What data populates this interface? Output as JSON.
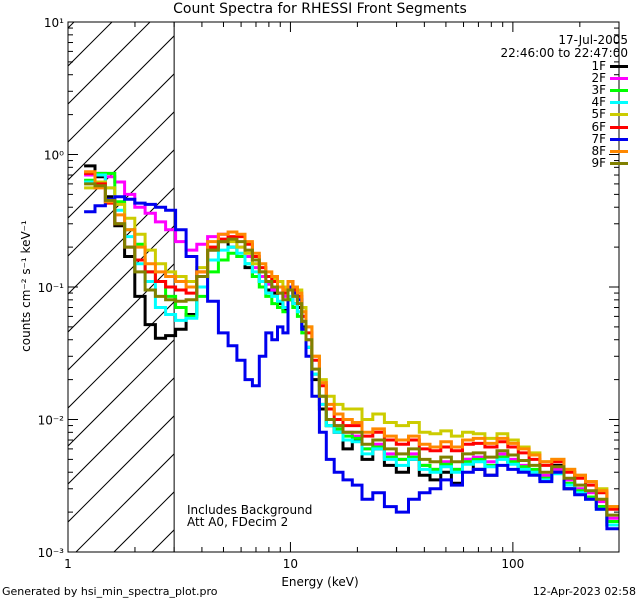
{
  "title": "Count Spectra for RHESSI Front Segments",
  "footer_left": "Generated by hsi_min_spectra_plot.pro",
  "footer_right": "12-Apr-2023 02:58",
  "legend_date": "17-Jul-2005",
  "legend_time": "22:46:00 to 22:47:00",
  "note_lines": [
    "Includes Background",
    "Att A0, FDecim 2"
  ],
  "chart_data": {
    "type": "line",
    "xscale": "log",
    "yscale": "log",
    "xlabel": "Energy (keV)",
    "ylabel": "counts cm⁻² s⁻¹ keV⁻¹",
    "xlim": [
      1,
      300
    ],
    "ylim": [
      0.001,
      10
    ],
    "x_ticks": [
      {
        "v": 1,
        "label": "1"
      },
      {
        "v": 10,
        "label": "10"
      },
      {
        "v": 100,
        "label": "100"
      }
    ],
    "y_ticks": [
      {
        "v": 0.001,
        "label": "10⁻³"
      },
      {
        "v": 0.01,
        "label": "10⁻²"
      },
      {
        "v": 0.1,
        "label": "10⁻¹"
      },
      {
        "v": 1,
        "label": "10⁰"
      },
      {
        "v": 10,
        "label": "10¹"
      }
    ],
    "shaded_region_keV": [
      1,
      3
    ],
    "energies": [
      1.25,
      1.4,
      1.55,
      1.7,
      1.9,
      2.1,
      2.35,
      2.6,
      2.9,
      3.2,
      3.6,
      4.0,
      4.5,
      5.0,
      5.5,
      6.0,
      6.5,
      7.0,
      7.5,
      8.0,
      8.5,
      9.0,
      9.5,
      10.0,
      10.5,
      11.0,
      11.5,
      12.0,
      13.0,
      14.0,
      15.0,
      16.5,
      18.0,
      20.0,
      22.0,
      25.0,
      28.0,
      32.0,
      36.0,
      40.0,
      45.0,
      50.0,
      56.0,
      63.0,
      70.0,
      80.0,
      90.0,
      100.0,
      112.0,
      125.0,
      140.0,
      160.0,
      180.0,
      200.0,
      225.0,
      250.0,
      280.0,
      300.0
    ],
    "series": [
      {
        "name": "1F",
        "color": "#000000",
        "values": [
          0.82,
          0.68,
          0.48,
          0.29,
          0.17,
          0.085,
          0.052,
          0.041,
          0.043,
          0.048,
          0.062,
          0.12,
          0.19,
          0.22,
          0.2,
          0.17,
          0.14,
          0.12,
          0.11,
          0.095,
          0.09,
          0.075,
          0.068,
          0.08,
          0.075,
          0.07,
          0.05,
          0.035,
          0.02,
          0.012,
          0.009,
          0.008,
          0.006,
          0.007,
          0.005,
          0.006,
          0.0045,
          0.004,
          0.005,
          0.0038,
          0.0035,
          0.004,
          0.0033,
          0.005,
          0.0042,
          0.0038,
          0.0052,
          0.0048,
          0.0042,
          0.004,
          0.0036,
          0.0045,
          0.003,
          0.0028,
          0.0026,
          0.0022,
          0.0016,
          0.0016
        ]
      },
      {
        "name": "2F",
        "color": "#ff00ff",
        "values": [
          0.7,
          0.72,
          0.68,
          0.62,
          0.5,
          0.4,
          0.36,
          0.31,
          0.27,
          0.22,
          0.19,
          0.21,
          0.24,
          0.25,
          0.23,
          0.2,
          0.17,
          0.14,
          0.12,
          0.105,
          0.095,
          0.09,
          0.085,
          0.1,
          0.09,
          0.08,
          0.055,
          0.04,
          0.022,
          0.013,
          0.01,
          0.009,
          0.008,
          0.0075,
          0.006,
          0.0065,
          0.0055,
          0.005,
          0.0055,
          0.0045,
          0.0042,
          0.0048,
          0.0042,
          0.005,
          0.0052,
          0.0048,
          0.0055,
          0.005,
          0.0045,
          0.004,
          0.0038,
          0.0042,
          0.0035,
          0.003,
          0.0028,
          0.0024,
          0.0018,
          0.0018
        ]
      },
      {
        "name": "3F",
        "color": "#00ff00",
        "values": [
          0.64,
          0.72,
          0.72,
          0.44,
          0.27,
          0.21,
          0.13,
          0.11,
          0.085,
          0.07,
          0.06,
          0.085,
          0.13,
          0.16,
          0.18,
          0.17,
          0.15,
          0.12,
          0.1,
          0.085,
          0.075,
          0.07,
          0.065,
          0.08,
          0.07,
          0.06,
          0.045,
          0.035,
          0.022,
          0.015,
          0.009,
          0.0085,
          0.0075,
          0.0072,
          0.006,
          0.0062,
          0.0052,
          0.005,
          0.0052,
          0.0045,
          0.0042,
          0.0046,
          0.0042,
          0.0048,
          0.005,
          0.0045,
          0.0052,
          0.0048,
          0.0044,
          0.0042,
          0.0036,
          0.004,
          0.0033,
          0.0029,
          0.0026,
          0.0022,
          0.0017,
          0.0017
        ]
      },
      {
        "name": "4F",
        "color": "#00ffff",
        "values": [
          0.62,
          0.7,
          0.56,
          0.38,
          0.24,
          0.15,
          0.11,
          0.07,
          0.062,
          0.056,
          0.058,
          0.1,
          0.16,
          0.19,
          0.2,
          0.18,
          0.15,
          0.13,
          0.11,
          0.09,
          0.085,
          0.078,
          0.07,
          0.085,
          0.075,
          0.065,
          0.048,
          0.035,
          0.022,
          0.013,
          0.009,
          0.008,
          0.007,
          0.0068,
          0.0055,
          0.006,
          0.005,
          0.0045,
          0.005,
          0.0042,
          0.004,
          0.0044,
          0.004,
          0.0046,
          0.0048,
          0.0044,
          0.005,
          0.0046,
          0.0042,
          0.004,
          0.0035,
          0.0039,
          0.0032,
          0.0028,
          0.0025,
          0.0021,
          0.0016,
          0.0016
        ]
      },
      {
        "name": "5F",
        "color": "#cccc00",
        "values": [
          0.56,
          0.62,
          0.56,
          0.42,
          0.33,
          0.25,
          0.19,
          0.15,
          0.13,
          0.12,
          0.11,
          0.14,
          0.2,
          0.22,
          0.22,
          0.2,
          0.18,
          0.15,
          0.13,
          0.12,
          0.115,
          0.11,
          0.1,
          0.11,
          0.1,
          0.095,
          0.07,
          0.05,
          0.03,
          0.02,
          0.015,
          0.013,
          0.012,
          0.012,
          0.01,
          0.011,
          0.0095,
          0.009,
          0.0095,
          0.008,
          0.0078,
          0.0082,
          0.0075,
          0.008,
          0.0078,
          0.0072,
          0.0078,
          0.007,
          0.0062,
          0.0056,
          0.0048,
          0.005,
          0.0042,
          0.0038,
          0.0034,
          0.003,
          0.0022,
          0.0022
        ]
      },
      {
        "name": "6F",
        "color": "#ff0000",
        "values": [
          0.72,
          0.6,
          0.43,
          0.3,
          0.2,
          0.16,
          0.13,
          0.11,
          0.1,
          0.095,
          0.09,
          0.13,
          0.2,
          0.23,
          0.24,
          0.24,
          0.21,
          0.17,
          0.14,
          0.12,
          0.11,
          0.1,
          0.09,
          0.11,
          0.095,
          0.085,
          0.06,
          0.045,
          0.028,
          0.018,
          0.012,
          0.01,
          0.009,
          0.009,
          0.0075,
          0.008,
          0.007,
          0.0065,
          0.007,
          0.006,
          0.0058,
          0.0062,
          0.0058,
          0.0065,
          0.0066,
          0.0062,
          0.0068,
          0.0062,
          0.0056,
          0.005,
          0.0045,
          0.0048,
          0.004,
          0.0036,
          0.0032,
          0.0028,
          0.0021,
          0.0021
        ]
      },
      {
        "name": "7F",
        "color": "#0000ee",
        "values": [
          0.37,
          0.41,
          0.46,
          0.48,
          0.46,
          0.43,
          0.42,
          0.4,
          0.38,
          0.27,
          0.17,
          0.12,
          0.078,
          0.045,
          0.036,
          0.028,
          0.02,
          0.018,
          0.03,
          0.045,
          0.04,
          0.05,
          0.045,
          0.1,
          0.09,
          0.08,
          0.048,
          0.03,
          0.015,
          0.008,
          0.005,
          0.004,
          0.0035,
          0.0032,
          0.0025,
          0.0028,
          0.0022,
          0.002,
          0.0025,
          0.0028,
          0.003,
          0.0035,
          0.0032,
          0.004,
          0.0042,
          0.0038,
          0.0045,
          0.0042,
          0.004,
          0.0038,
          0.0034,
          0.004,
          0.003,
          0.0027,
          0.0025,
          0.0021,
          0.0015,
          0.0015
        ]
      },
      {
        "name": "8F",
        "color": "#ff8800",
        "values": [
          0.74,
          0.56,
          0.44,
          0.35,
          0.27,
          0.2,
          0.15,
          0.13,
          0.12,
          0.11,
          0.1,
          0.13,
          0.22,
          0.25,
          0.26,
          0.25,
          0.22,
          0.18,
          0.15,
          0.13,
          0.12,
          0.1,
          0.095,
          0.11,
          0.1,
          0.09,
          0.065,
          0.05,
          0.03,
          0.019,
          0.013,
          0.011,
          0.01,
          0.0095,
          0.008,
          0.0085,
          0.0075,
          0.007,
          0.0075,
          0.0065,
          0.0062,
          0.0068,
          0.0062,
          0.007,
          0.0072,
          0.0066,
          0.0072,
          0.0066,
          0.006,
          0.0054,
          0.0048,
          0.005,
          0.0042,
          0.0038,
          0.0034,
          0.0029,
          0.0022,
          0.0022
        ]
      },
      {
        "name": "9F",
        "color": "#808000",
        "values": [
          0.6,
          0.58,
          0.45,
          0.3,
          0.2,
          0.13,
          0.095,
          0.085,
          0.08,
          0.078,
          0.08,
          0.12,
          0.19,
          0.22,
          0.23,
          0.22,
          0.19,
          0.16,
          0.13,
          0.11,
          0.1,
          0.09,
          0.08,
          0.095,
          0.085,
          0.075,
          0.055,
          0.04,
          0.024,
          0.015,
          0.01,
          0.009,
          0.008,
          0.008,
          0.0065,
          0.007,
          0.006,
          0.0055,
          0.006,
          0.005,
          0.0048,
          0.0052,
          0.0048,
          0.0055,
          0.0056,
          0.0052,
          0.0058,
          0.0054,
          0.0049,
          0.0045,
          0.004,
          0.0044,
          0.0036,
          0.0032,
          0.0029,
          0.0025,
          0.0019,
          0.0019
        ]
      }
    ]
  }
}
